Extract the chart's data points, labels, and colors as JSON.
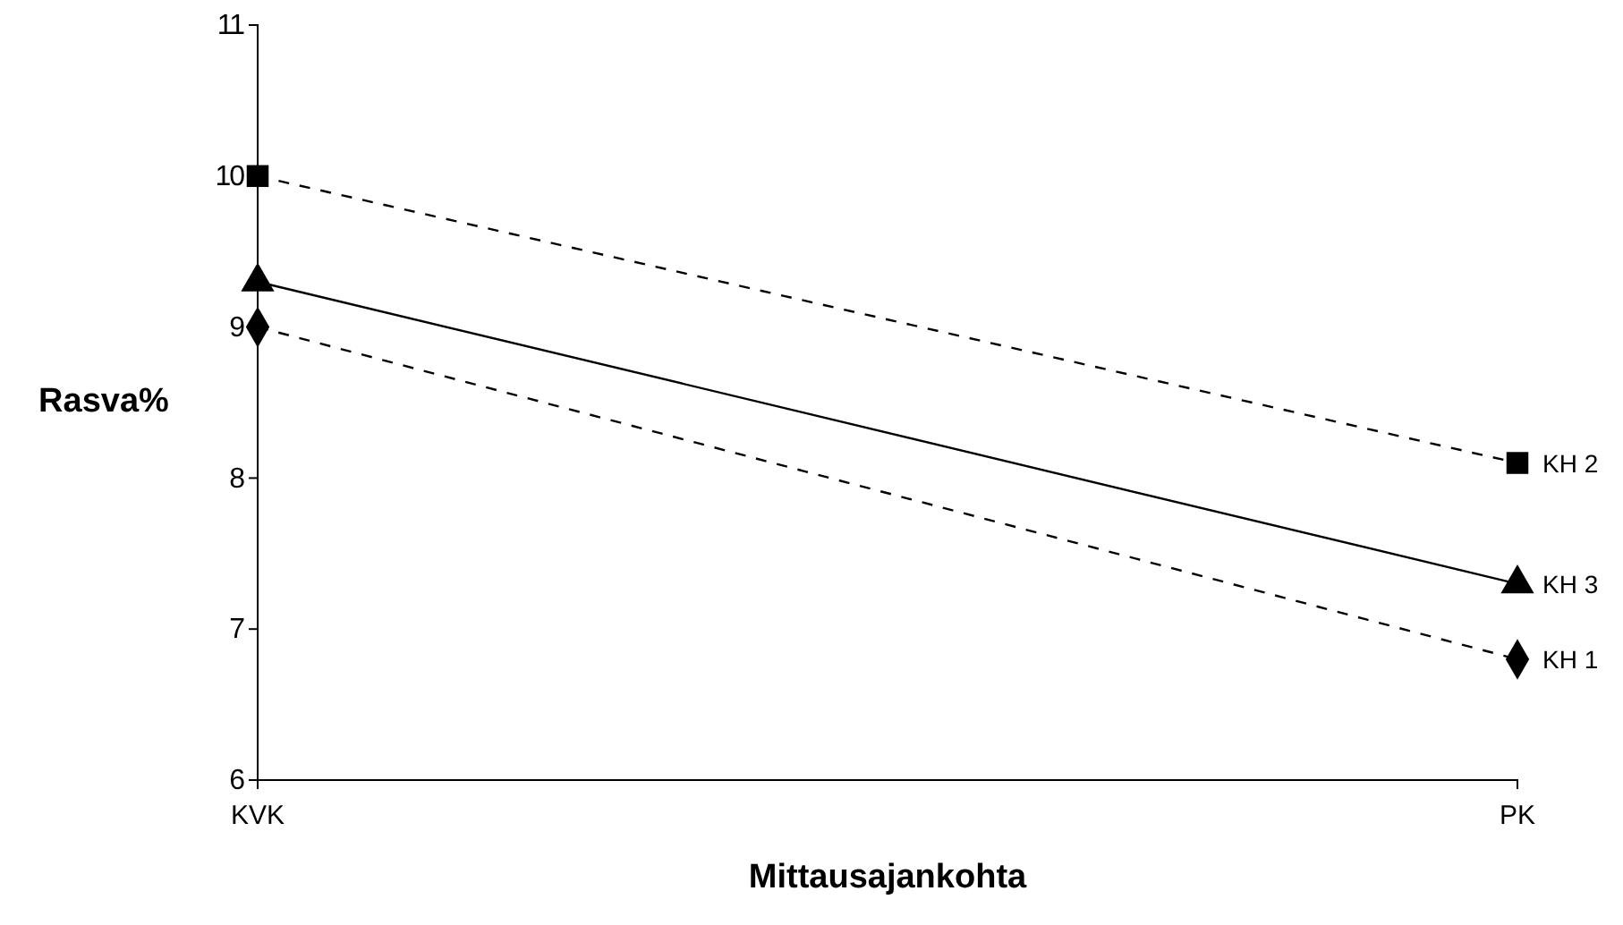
{
  "chart_data": {
    "type": "line",
    "xlabel": "Mittausajankohta",
    "ylabel": "Rasva%",
    "categories": [
      "KVK",
      "PK"
    ],
    "series": [
      {
        "name": "KH 1",
        "color": "#000000",
        "values": [
          9,
          6.8
        ],
        "marker": "diamond",
        "line_style": "dashed"
      },
      {
        "name": "KH 2",
        "color": "#000000",
        "values": [
          10,
          8.1
        ],
        "marker": "square",
        "line_style": "dashed"
      },
      {
        "name": "KH 3",
        "color": "#000000",
        "values": [
          9.3,
          7.3
        ],
        "marker": "triangle",
        "line_style": "solid"
      }
    ],
    "ylim": [
      6,
      11
    ],
    "yticks": [
      6,
      7,
      8,
      9,
      10,
      11
    ],
    "grid": false
  }
}
